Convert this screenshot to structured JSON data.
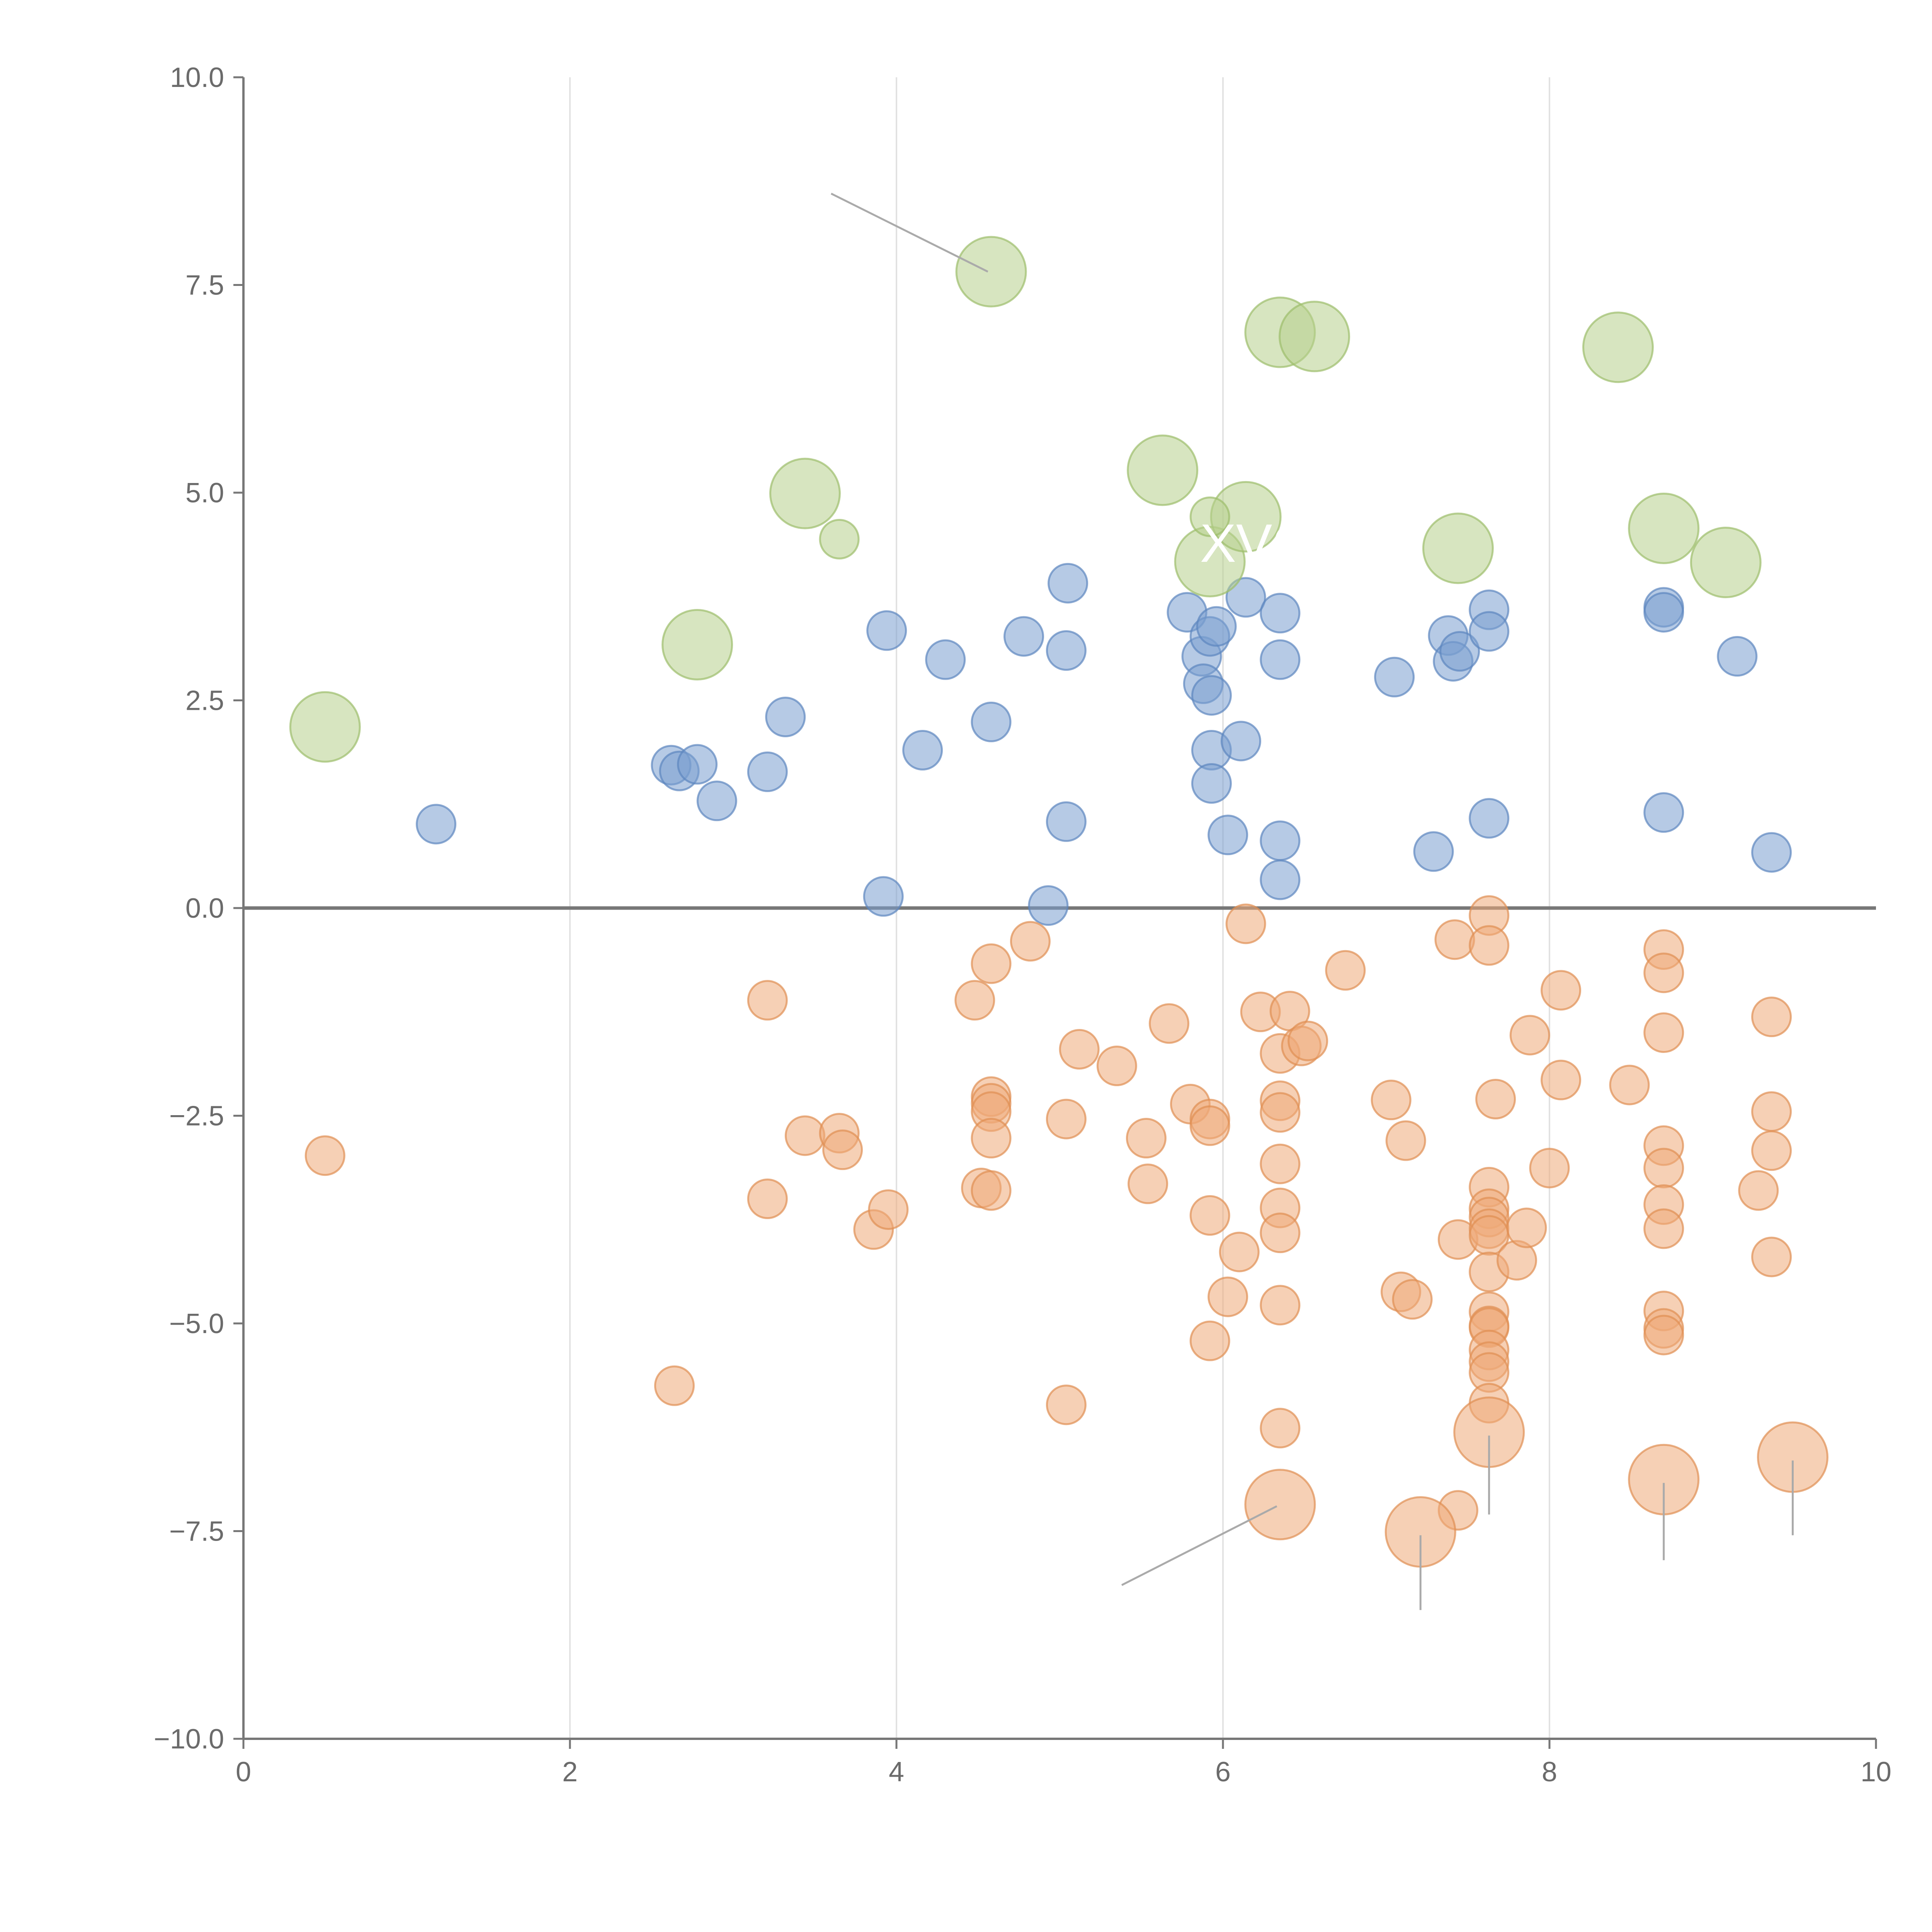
{
  "chart_data": {
    "type": "scatter",
    "title": "",
    "xlabel": "",
    "ylabel": "",
    "xlim": [
      0,
      10
    ],
    "ylim": [
      -10,
      10
    ],
    "grid": "vertical",
    "x_ticks": [
      "0",
      "2",
      "4",
      "6",
      "8",
      "10"
    ],
    "x_tick_values": [
      0,
      2,
      4,
      6,
      8,
      10
    ],
    "y_ticks": [
      "10.0",
      "7.5",
      "5.0",
      "2.5",
      "0.0",
      "−2.5",
      "−5.0",
      "−7.5",
      "−10.0"
    ],
    "y_tick_values": [
      10,
      7.5,
      5,
      2.5,
      0,
      -2.5,
      -5,
      -7.5,
      -10
    ],
    "reference_line_y": 0,
    "overlay_text": "XVC",
    "overlay_text_position": [
      6.2,
      4.4
    ],
    "series": [
      {
        "name": "blue",
        "color": "#7a9fcf",
        "stroke": "#5d86bf",
        "size": "small",
        "points": [
          [
            1.18,
            1.01
          ],
          [
            2.62,
            1.72
          ],
          [
            2.67,
            1.65
          ],
          [
            2.78,
            1.73
          ],
          [
            2.9,
            1.29
          ],
          [
            3.21,
            1.64
          ],
          [
            3.32,
            2.3
          ],
          [
            3.92,
            0.14
          ],
          [
            3.94,
            3.34
          ],
          [
            4.16,
            1.9
          ],
          [
            4.3,
            2.99
          ],
          [
            4.58,
            2.24
          ],
          [
            4.78,
            3.27
          ],
          [
            4.93,
            0.03
          ],
          [
            5.04,
            1.04
          ],
          [
            5.04,
            3.1
          ],
          [
            5.05,
            3.91
          ],
          [
            5.78,
            3.56
          ],
          [
            5.87,
            3.03
          ],
          [
            5.88,
            2.7
          ],
          [
            5.92,
            3.27
          ],
          [
            5.93,
            2.56
          ],
          [
            5.93,
            1.9
          ],
          [
            5.93,
            1.5
          ],
          [
            5.96,
            3.39
          ],
          [
            6.03,
            0.88
          ],
          [
            6.11,
            2.01
          ],
          [
            6.14,
            3.74
          ],
          [
            6.35,
            3.55
          ],
          [
            6.35,
            2.99
          ],
          [
            6.35,
            0.81
          ],
          [
            6.35,
            0.34
          ],
          [
            7.05,
            2.78
          ],
          [
            7.29,
            0.68
          ],
          [
            7.38,
            3.28
          ],
          [
            7.41,
            2.97
          ],
          [
            7.45,
            3.09
          ],
          [
            7.63,
            3.59
          ],
          [
            7.63,
            3.33
          ],
          [
            7.63,
            1.08
          ],
          [
            8.7,
            3.62
          ],
          [
            8.7,
            3.56
          ],
          [
            8.7,
            1.15
          ],
          [
            9.15,
            3.03
          ],
          [
            9.36,
            0.67
          ]
        ]
      },
      {
        "name": "orange",
        "color": "#eeaa78",
        "stroke": "#e08f52",
        "size": "small",
        "points": [
          [
            0.5,
            -2.98
          ],
          [
            2.64,
            -5.75
          ],
          [
            3.21,
            -1.11
          ],
          [
            3.21,
            -3.5
          ],
          [
            3.44,
            -2.74
          ],
          [
            3.65,
            -2.71
          ],
          [
            3.67,
            -2.91
          ],
          [
            3.86,
            -3.87
          ],
          [
            3.95,
            -3.63
          ],
          [
            4.48,
            -1.11
          ],
          [
            4.52,
            -3.37
          ],
          [
            4.58,
            -0.67
          ],
          [
            4.58,
            -2.27
          ],
          [
            4.58,
            -2.35
          ],
          [
            4.58,
            -2.45
          ],
          [
            4.58,
            -2.77
          ],
          [
            4.58,
            -3.4
          ],
          [
            4.82,
            -0.4
          ],
          [
            5.04,
            -2.54
          ],
          [
            5.04,
            -5.98
          ],
          [
            5.12,
            -1.7
          ],
          [
            5.35,
            -1.9
          ],
          [
            5.53,
            -2.77
          ],
          [
            5.54,
            -3.32
          ],
          [
            5.67,
            -1.39
          ],
          [
            5.8,
            -2.36
          ],
          [
            5.92,
            -2.54
          ],
          [
            5.92,
            -2.62
          ],
          [
            5.92,
            -3.7
          ],
          [
            5.92,
            -5.21
          ],
          [
            6.03,
            -4.68
          ],
          [
            6.1,
            -4.14
          ],
          [
            6.14,
            -0.19
          ],
          [
            6.23,
            -1.25
          ],
          [
            6.35,
            -1.75
          ],
          [
            6.35,
            -2.32
          ],
          [
            6.35,
            -2.46
          ],
          [
            6.35,
            -3.08
          ],
          [
            6.35,
            -3.61
          ],
          [
            6.35,
            -3.91
          ],
          [
            6.35,
            -4.78
          ],
          [
            6.35,
            -6.26
          ],
          [
            6.41,
            -1.24
          ],
          [
            6.48,
            -1.66
          ],
          [
            6.52,
            -1.6
          ],
          [
            6.75,
            -0.75
          ],
          [
            7.03,
            -2.31
          ],
          [
            7.12,
            -2.8
          ],
          [
            7.09,
            -4.62
          ],
          [
            7.16,
            -4.71
          ],
          [
            7.42,
            -0.38
          ],
          [
            7.44,
            -3.99
          ],
          [
            7.44,
            -7.25
          ],
          [
            7.63,
            -0.09
          ],
          [
            7.63,
            -0.45
          ],
          [
            7.63,
            -3.36
          ],
          [
            7.63,
            -3.62
          ],
          [
            7.63,
            -3.72
          ],
          [
            7.63,
            -3.86
          ],
          [
            7.63,
            -3.94
          ],
          [
            7.63,
            -4.38
          ],
          [
            7.63,
            -4.86
          ],
          [
            7.63,
            -5.03
          ],
          [
            7.63,
            -5.05
          ],
          [
            7.63,
            -5.32
          ],
          [
            7.63,
            -5.46
          ],
          [
            7.63,
            -5.59
          ],
          [
            7.63,
            -5.96
          ],
          [
            7.67,
            -2.3
          ],
          [
            7.8,
            -4.24
          ],
          [
            7.86,
            -3.85
          ],
          [
            7.88,
            -1.53
          ],
          [
            8.0,
            -3.13
          ],
          [
            8.07,
            -0.99
          ],
          [
            8.07,
            -2.07
          ],
          [
            8.49,
            -2.13
          ],
          [
            8.7,
            -0.5
          ],
          [
            8.7,
            -0.78
          ],
          [
            8.7,
            -1.5
          ],
          [
            8.7,
            -2.86
          ],
          [
            8.7,
            -3.13
          ],
          [
            8.7,
            -3.57
          ],
          [
            8.7,
            -3.86
          ],
          [
            8.7,
            -4.85
          ],
          [
            8.7,
            -5.06
          ],
          [
            8.7,
            -5.14
          ],
          [
            9.28,
            -3.4
          ],
          [
            9.36,
            -1.31
          ],
          [
            9.36,
            -2.45
          ],
          [
            9.36,
            -2.92
          ],
          [
            9.36,
            -4.2
          ]
        ]
      },
      {
        "name": "orange-large",
        "color": "#eeaa78",
        "stroke": "#e08f52",
        "size": "large",
        "points": [
          [
            6.35,
            -7.18
          ],
          [
            7.21,
            -7.51
          ],
          [
            7.63,
            -6.31
          ],
          [
            8.7,
            -6.88
          ],
          [
            9.49,
            -6.61
          ]
        ]
      },
      {
        "name": "green",
        "color": "#b6d08c",
        "stroke": "#9cbd6b",
        "size": "large",
        "points": [
          [
            0.5,
            2.18
          ],
          [
            2.78,
            3.17
          ],
          [
            3.44,
            4.99
          ],
          [
            4.58,
            7.66
          ],
          [
            5.63,
            5.27
          ],
          [
            5.92,
            4.17
          ],
          [
            6.14,
            4.71
          ],
          [
            6.35,
            6.93
          ],
          [
            6.56,
            6.88
          ],
          [
            7.44,
            4.33
          ],
          [
            8.42,
            6.75
          ],
          [
            8.7,
            4.57
          ],
          [
            9.08,
            4.16
          ]
        ]
      },
      {
        "name": "green-small",
        "color": "#b6d08c",
        "stroke": "#9cbd6b",
        "size": "small",
        "points": [
          [
            3.65,
            4.44
          ],
          [
            5.92,
            4.71
          ]
        ]
      }
    ],
    "leader_lines": [
      [
        [
          4.56,
          7.66
        ],
        [
          3.6,
          8.6
        ]
      ],
      [
        [
          6.33,
          -7.2
        ],
        [
          5.38,
          -8.15
        ]
      ],
      [
        [
          7.21,
          -7.55
        ],
        [
          7.21,
          -8.45
        ]
      ],
      [
        [
          7.63,
          -6.35
        ],
        [
          7.63,
          -7.3
        ]
      ],
      [
        [
          8.7,
          -6.92
        ],
        [
          8.7,
          -7.85
        ]
      ],
      [
        [
          9.49,
          -6.65
        ],
        [
          9.49,
          -7.55
        ]
      ]
    ]
  }
}
